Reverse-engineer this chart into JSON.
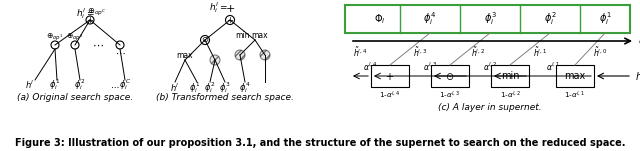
{
  "figure_caption": "Figure 3: Illustration of our proposition 3.1, and the structure of the supernet to search on the reduced space.",
  "caption_fontsize": 8.5,
  "subcaption_a": "(a) Original search space.",
  "subcaption_b": "(b) Transformed search space.",
  "subcaption_c": "(c) A layer in supernet.",
  "bg_color": "#ffffff",
  "fig_width": 6.4,
  "fig_height": 1.51
}
